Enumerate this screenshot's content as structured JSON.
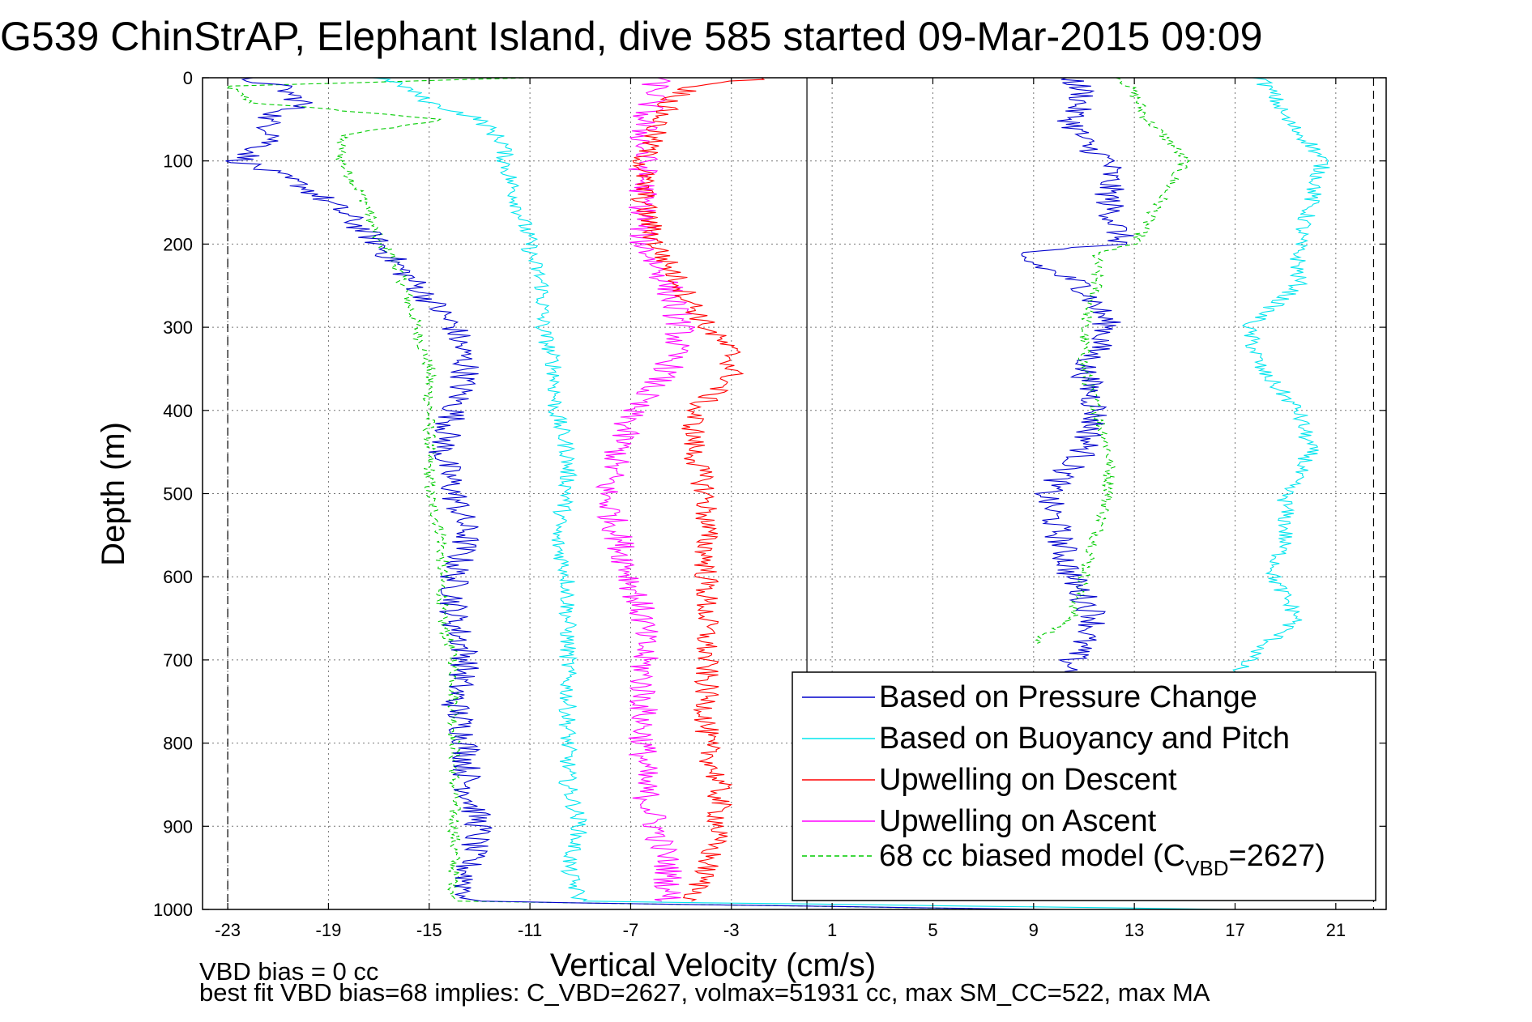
{
  "chart_data": {
    "type": "line",
    "title": "G539 ChinStrAP, Elephant Island, dive 585 started 09-Mar-2015 09:09",
    "xlabel": "Vertical Velocity (cm/s)",
    "ylabel": "Depth (m)",
    "xlim": [
      -24,
      23
    ],
    "ylim": [
      0,
      1000
    ],
    "y_reversed": true,
    "xticks": [
      -23,
      -19,
      -15,
      -11,
      -7,
      -3,
      1,
      5,
      9,
      13,
      17,
      21
    ],
    "yticks": [
      0,
      100,
      200,
      300,
      400,
      500,
      600,
      700,
      800,
      900,
      1000
    ],
    "grid": true,
    "legend_position": "bottom-right",
    "reference_lines": [
      {
        "x": -23,
        "style": "dashed"
      },
      {
        "x": 22.5,
        "style": "dashed"
      },
      {
        "x": 0,
        "style": "solid"
      }
    ],
    "notes": [
      "VBD bias = 0 cc",
      "best fit VBD bias=68 implies: C_VBD=2627, volmax=51931 cc, max SM_CC=522, max MA"
    ],
    "series": [
      {
        "name": "Based on Pressure Change",
        "color": "#0000cc",
        "style": "solid",
        "noise": 0.6,
        "descent": {
          "y": [
            0,
            10,
            30,
            50,
            70,
            90,
            100,
            130,
            160,
            200,
            250,
            300,
            350,
            400,
            450,
            500,
            550,
            600,
            650,
            700,
            750,
            800,
            850,
            900,
            950,
            990,
            1000
          ],
          "x": [
            -22.5,
            -21,
            -20,
            -21.5,
            -21,
            -22,
            -22.5,
            -20,
            -18.5,
            -17,
            -15.5,
            -14,
            -13.5,
            -14,
            -14.5,
            -14,
            -13.5,
            -14,
            -14,
            -13.5,
            -14,
            -13.5,
            -13.5,
            -13,
            -13.5,
            -13.5,
            9
          ]
        },
        "ascent": {
          "y": [
            0,
            20,
            50,
            80,
            100,
            150,
            200,
            210,
            250,
            300,
            350,
            400,
            450,
            500,
            550,
            600,
            650,
            700,
            715
          ],
          "x": [
            10.5,
            11,
            10.5,
            11,
            12,
            12,
            12.5,
            8,
            11,
            12,
            11,
            11.5,
            11,
            9.5,
            10,
            10.5,
            11.5,
            10.5,
            10.5
          ]
        }
      },
      {
        "name": "Based on Buoyancy and Pitch",
        "color": "#00e5ee",
        "style": "solid",
        "noise": 0.35,
        "descent": {
          "y": [
            0,
            10,
            30,
            50,
            80,
            100,
            150,
            200,
            210,
            250,
            300,
            350,
            400,
            450,
            500,
            550,
            600,
            650,
            700,
            750,
            800,
            850,
            900,
            950,
            990,
            1000
          ],
          "x": [
            -17,
            -16,
            -15,
            -13,
            -12,
            -12,
            -11.5,
            -11,
            -11,
            -10.5,
            -10.5,
            -10,
            -10,
            -9.5,
            -9.5,
            -10,
            -9.5,
            -9.5,
            -9.5,
            -9.5,
            -9.5,
            -9.5,
            -9,
            -9.5,
            -9,
            17
          ]
        },
        "ascent": {
          "y": [
            0,
            20,
            50,
            80,
            100,
            150,
            200,
            250,
            300,
            350,
            400,
            450,
            500,
            550,
            600,
            650,
            700,
            715
          ],
          "x": [
            18,
            18.5,
            19,
            20,
            20.5,
            20,
            19.5,
            19.5,
            17.5,
            18,
            19.5,
            20,
            19,
            19,
            18.5,
            19.5,
            17.5,
            17
          ]
        }
      },
      {
        "name": "Upwelling on Descent",
        "color": "#ff0000",
        "style": "solid",
        "noise": 0.5,
        "descent": {
          "y": [
            0,
            10,
            30,
            60,
            100,
            150,
            200,
            250,
            300,
            330,
            360,
            400,
            450,
            500,
            550,
            600,
            650,
            700,
            750,
            800,
            850,
            900,
            950,
            990
          ],
          "x": [
            -1.5,
            -4.5,
            -5.5,
            -6,
            -6.5,
            -6.5,
            -6,
            -5,
            -4,
            -3,
            -3,
            -4.5,
            -4.5,
            -4,
            -4,
            -4,
            -4,
            -4,
            -4,
            -4,
            -3.5,
            -3.5,
            -4,
            -4.5
          ]
        }
      },
      {
        "name": "Upwelling on Ascent",
        "color": "#ff00ff",
        "style": "solid",
        "noise": 0.6,
        "descent": {
          "y": [
            0,
            20,
            50,
            100,
            150,
            200,
            250,
            300,
            350,
            400,
            450,
            500,
            550,
            600,
            650,
            700,
            750,
            800,
            850,
            900,
            950,
            990
          ],
          "x": [
            -6,
            -6,
            -6.5,
            -6.5,
            -6.5,
            -6.5,
            -5.5,
            -5,
            -5.5,
            -7,
            -7.5,
            -8,
            -7.5,
            -7,
            -6.5,
            -6.5,
            -6.5,
            -6.5,
            -6.5,
            -6,
            -5.5,
            -5.5
          ]
        }
      },
      {
        "name": "68 cc biased model (C_VBD=2627)",
        "label_main": "68 cc biased model (C",
        "label_sub": "VBD",
        "label_tail": "=2627)",
        "color": "#00cc00",
        "style": "dashed",
        "noise": 0.25,
        "descent": {
          "y": [
            0,
            10,
            30,
            50,
            70,
            100,
            150,
            200,
            210,
            250,
            300,
            350,
            400,
            450,
            500,
            550,
            600,
            650,
            700,
            750,
            800,
            850,
            900,
            950,
            990,
            1000
          ],
          "x": [
            -11,
            -23,
            -22,
            -14.5,
            -18.5,
            -18.5,
            -17.5,
            -17,
            -16.5,
            -16,
            -15.5,
            -15,
            -15,
            -15,
            -15,
            -14.5,
            -14.5,
            -14.5,
            -14,
            -14,
            -14,
            -14,
            -14,
            -14,
            -14,
            9
          ]
        },
        "ascent": {
          "y": [
            0,
            20,
            50,
            80,
            100,
            150,
            200,
            210,
            250,
            300,
            350,
            400,
            450,
            500,
            550,
            600,
            650,
            680
          ],
          "x": [
            12.5,
            13,
            13.5,
            14.5,
            15,
            14,
            13,
            11.5,
            11.5,
            11,
            11,
            11.5,
            12,
            12,
            11.5,
            11,
            10.5,
            9
          ]
        }
      }
    ]
  }
}
